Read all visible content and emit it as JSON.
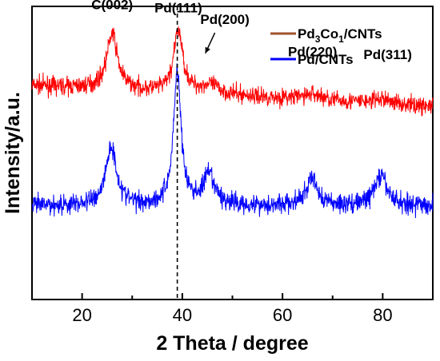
{
  "chart_data": {
    "type": "line",
    "title": "",
    "xlabel": "2 Theta / degree",
    "ylabel": "Intensity/a.u.",
    "xlim": [
      10,
      90
    ],
    "ylim": [
      0,
      1
    ],
    "x_ticks": [
      20,
      40,
      60,
      80
    ],
    "grid": false,
    "legend_position": "top-right",
    "y_tick_labels": false,
    "reference_line": {
      "x": 39,
      "style": "dashed"
    },
    "series": [
      {
        "name": "Pd3Co1/CNTs",
        "name_parts": {
          "p1": "Pd",
          "s1": "3",
          "p2": "Co",
          "s2": "1",
          "p3": "/CNTs"
        },
        "color": "#ff0000",
        "legend_color": "#a0522d",
        "baseline": 0.73,
        "peaks": [
          {
            "center": 26,
            "height": 0.19,
            "width": 1.3
          },
          {
            "center": 39.2,
            "height": 0.21,
            "width": 1.1
          },
          {
            "center": 45.5,
            "height": 0.03,
            "width": 2.5
          },
          {
            "center": 66,
            "height": 0.02,
            "width": 2.5
          },
          {
            "center": 80,
            "height": 0.015,
            "width": 2.5
          }
        ],
        "noise": 0.03
      },
      {
        "name": "Pd/CNTs",
        "color": "#0000ff",
        "legend_color": "#0000ff",
        "baseline": 0.32,
        "peaks": [
          {
            "center": 25.8,
            "height": 0.2,
            "width": 1.3
          },
          {
            "center": 39,
            "height": 0.46,
            "width": 0.9
          },
          {
            "center": 45.3,
            "height": 0.1,
            "width": 1.4
          },
          {
            "center": 65.9,
            "height": 0.09,
            "width": 1.3
          },
          {
            "center": 79.6,
            "height": 0.1,
            "width": 1.5
          }
        ],
        "noise": 0.035
      }
    ],
    "annotations": [
      {
        "text": "C(002)",
        "x": 26,
        "y": 0.99
      },
      {
        "text": "Pd(111)",
        "x": 39.2,
        "y": 0.98
      },
      {
        "text": "Pd(200)",
        "x": 48.5,
        "y": 0.94
      },
      {
        "text": "Pd(220)",
        "x": 66,
        "y": 0.83
      },
      {
        "text": "Pd(311)",
        "x": 81,
        "y": 0.82
      }
    ],
    "arrow": {
      "from": [
        46.5,
        0.91
      ],
      "to": [
        44.6,
        0.84
      ]
    }
  }
}
